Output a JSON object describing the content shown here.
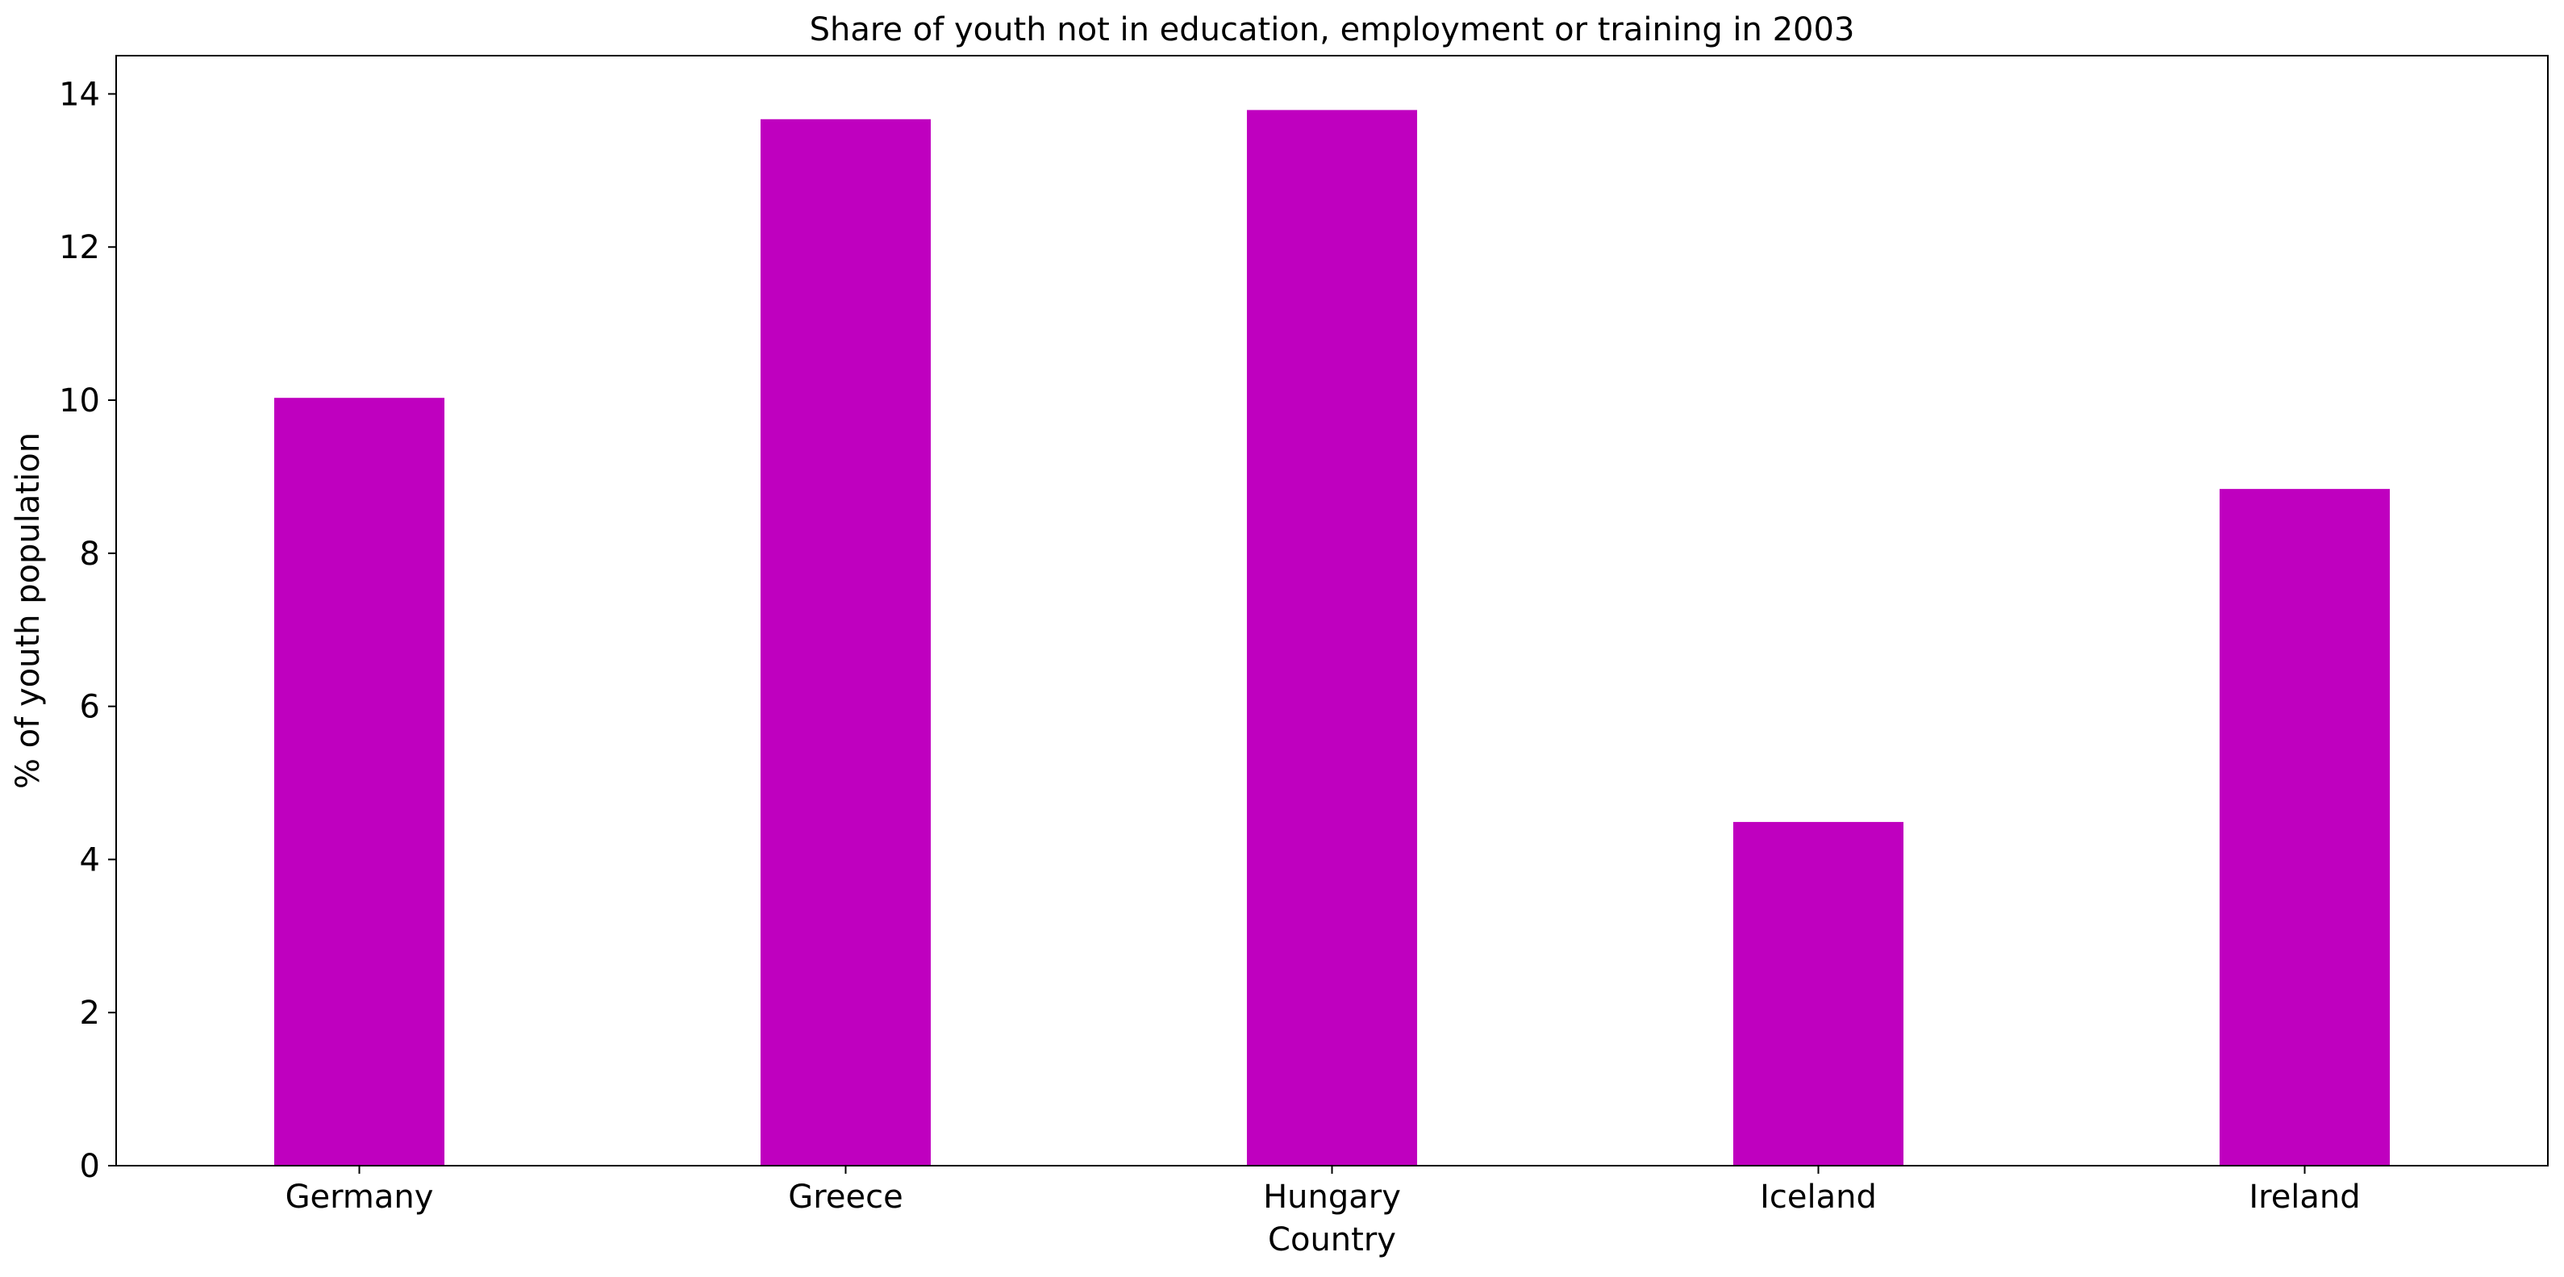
{
  "chart_data": {
    "type": "bar",
    "title": "Share of youth not in education, employment or training in 2003",
    "xlabel": "Country",
    "ylabel": "% of youth population",
    "categories": [
      "Germany",
      "Greece",
      "Hungary",
      "Iceland",
      "Ireland"
    ],
    "values": [
      10.03,
      13.67,
      13.79,
      4.49,
      8.84
    ],
    "ylim": [
      0,
      14.5
    ],
    "yticks": [
      0,
      2,
      4,
      6,
      8,
      10,
      12,
      14
    ],
    "grid": false,
    "legend": "none",
    "bar_color": "#bf00bf"
  }
}
